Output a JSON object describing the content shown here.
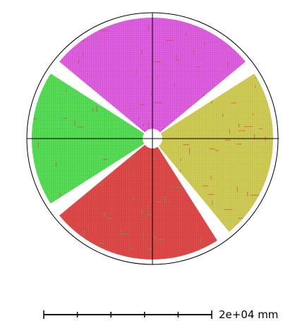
{
  "diagram": {
    "segments": [
      {
        "name": "top",
        "color": "#e070e0",
        "line_color": "#c000c0",
        "accent": "#e04040"
      },
      {
        "name": "right",
        "color": "#d4d060",
        "line_color": "#a8a020",
        "accent": "#e04040"
      },
      {
        "name": "bottom",
        "color": "#e05050",
        "line_color": "#c02020",
        "accent": "#40c040"
      },
      {
        "name": "left",
        "color": "#60e060",
        "line_color": "#20b020",
        "accent": "#e04040"
      }
    ],
    "outline_color": "#000000",
    "background": "#ffffff"
  },
  "scale_bar": {
    "label": "2e+04 mm",
    "ticks": 6
  }
}
